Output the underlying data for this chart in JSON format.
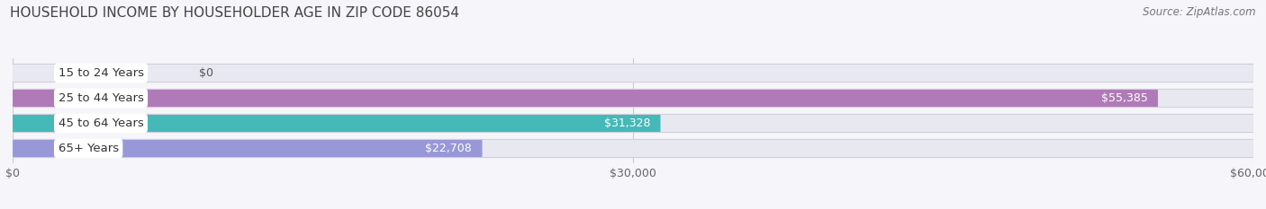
{
  "title": "HOUSEHOLD INCOME BY HOUSEHOLDER AGE IN ZIP CODE 86054",
  "source": "Source: ZipAtlas.com",
  "categories": [
    "15 to 24 Years",
    "25 to 44 Years",
    "45 to 64 Years",
    "65+ Years"
  ],
  "values": [
    0,
    55385,
    31328,
    22708
  ],
  "labels": [
    "$0",
    "$55,385",
    "$31,328",
    "$22,708"
  ],
  "bar_colors": [
    "#a8c8e8",
    "#b07ab8",
    "#45b8b8",
    "#9898d8"
  ],
  "bar_bg_color": "#e8e8f0",
  "bar_shadow_color": "#d0d0dc",
  "xlim": [
    0,
    60000
  ],
  "xticks": [
    0,
    30000,
    60000
  ],
  "xticklabels": [
    "$0",
    "$30,000",
    "$60,000"
  ],
  "title_fontsize": 11,
  "source_fontsize": 8.5,
  "label_fontsize": 9,
  "tick_fontsize": 9,
  "cat_fontsize": 9.5,
  "background_color": "#f5f5fa"
}
